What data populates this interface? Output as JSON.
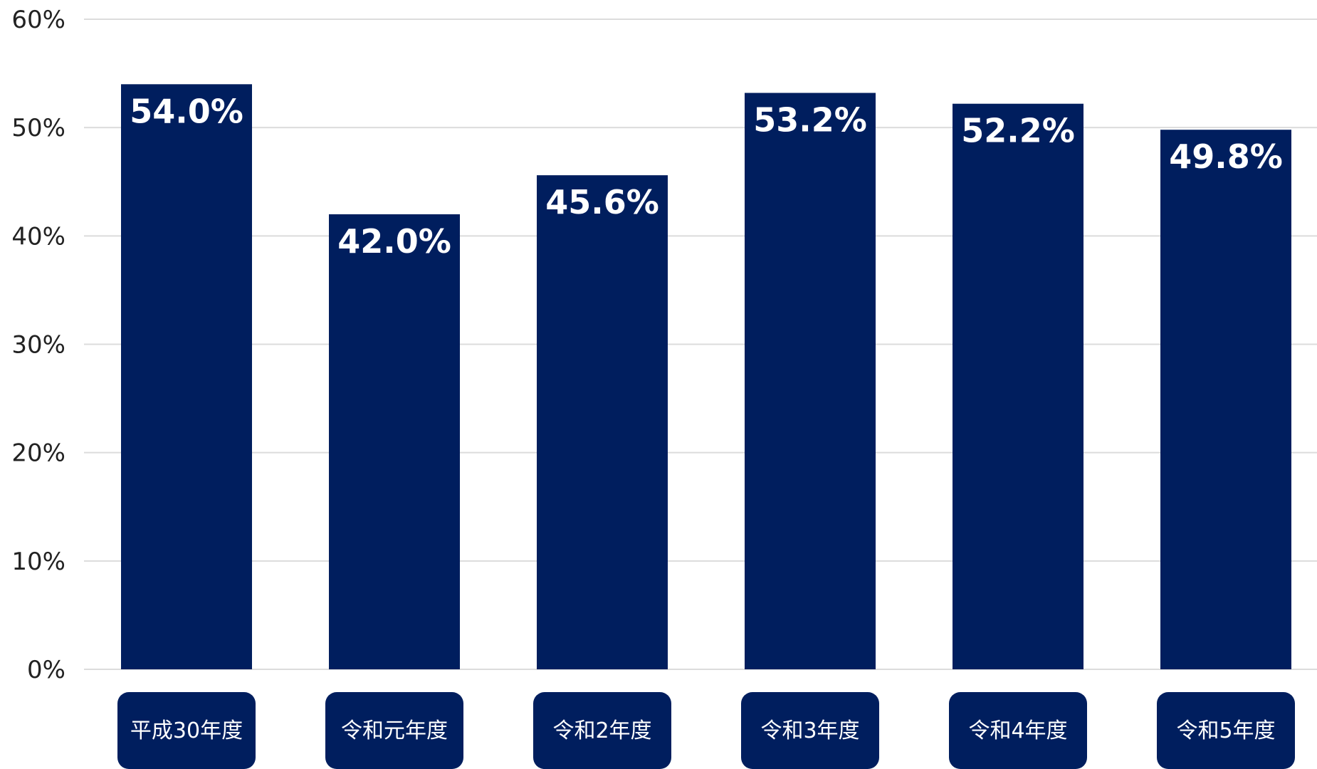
{
  "chart_data": {
    "type": "bar",
    "categories": [
      "平成30年度",
      "令和元年度",
      "令和2年度",
      "令和3年度",
      "令和4年度",
      "令和5年度"
    ],
    "values": [
      54.0,
      42.0,
      45.6,
      53.2,
      52.2,
      49.8
    ],
    "value_labels": [
      "54.0%",
      "42.0%",
      "45.6%",
      "53.2%",
      "52.2%",
      "49.8%"
    ],
    "y_ticks": [
      0,
      10,
      20,
      30,
      40,
      50,
      60
    ],
    "y_tick_labels": [
      "0%",
      "10%",
      "20%",
      "30%",
      "40%",
      "50%",
      "60%"
    ],
    "ylim": [
      0,
      60
    ],
    "title": "",
    "xlabel": "",
    "ylabel": "",
    "grid": true,
    "legend": "none",
    "colors": {
      "bar": "#001e5e",
      "category_box": "#001e5e",
      "grid": "#dcdcdc",
      "bar_label_text": "#ffffff",
      "tick_text": "#222222"
    }
  }
}
